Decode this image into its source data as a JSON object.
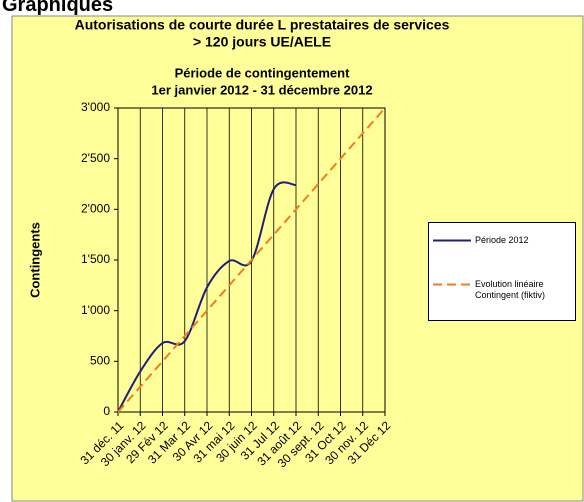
{
  "heading": "Graphiques",
  "chart_data": {
    "type": "line",
    "title": [
      "Autorisations de courte durée L prestataires de services",
      "> 120 jours UE/AELE"
    ],
    "subtitle": [
      "Période de contingentement",
      "1er janvier 2012 - 31 décembre 2012"
    ],
    "y_label": "Contingents",
    "categories": [
      "31 déc. 11",
      "30 janv. 12",
      "29 Fév 12",
      "31 Mar 12",
      "30 Avr 12",
      "31 mai 12",
      "30 juin 12",
      "31 Jul 12",
      "31 août 12",
      "30 sept. 12",
      "31 Oct 12",
      "30 nov. 12",
      "31 Déc 12"
    ],
    "series": [
      {
        "name": "Période 2012",
        "color": "#1f1f7a",
        "dashed": false,
        "values": [
          0,
          400,
          680,
          700,
          1230,
          1490,
          1490,
          2200,
          2240,
          null,
          null,
          null,
          null
        ]
      },
      {
        "name": "Evolution linéaire Contingent (fiktiv)",
        "color": "#f47b20",
        "dashed": true,
        "values": [
          0,
          250,
          500,
          750,
          1000,
          1250,
          1500,
          1750,
          2000,
          2250,
          2500,
          2750,
          3000
        ]
      }
    ],
    "ylim": [
      0,
      3000
    ],
    "yticks": [
      0,
      500,
      {
        "value": 1000,
        "label": "1'000"
      },
      {
        "value": 1500,
        "label": "1'500"
      },
      {
        "value": 2000,
        "label": "2'000"
      },
      {
        "value": 2500,
        "label": "2'500"
      },
      {
        "value": 3000,
        "label": "3'000"
      }
    ],
    "grid": "x",
    "legend": "right"
  }
}
